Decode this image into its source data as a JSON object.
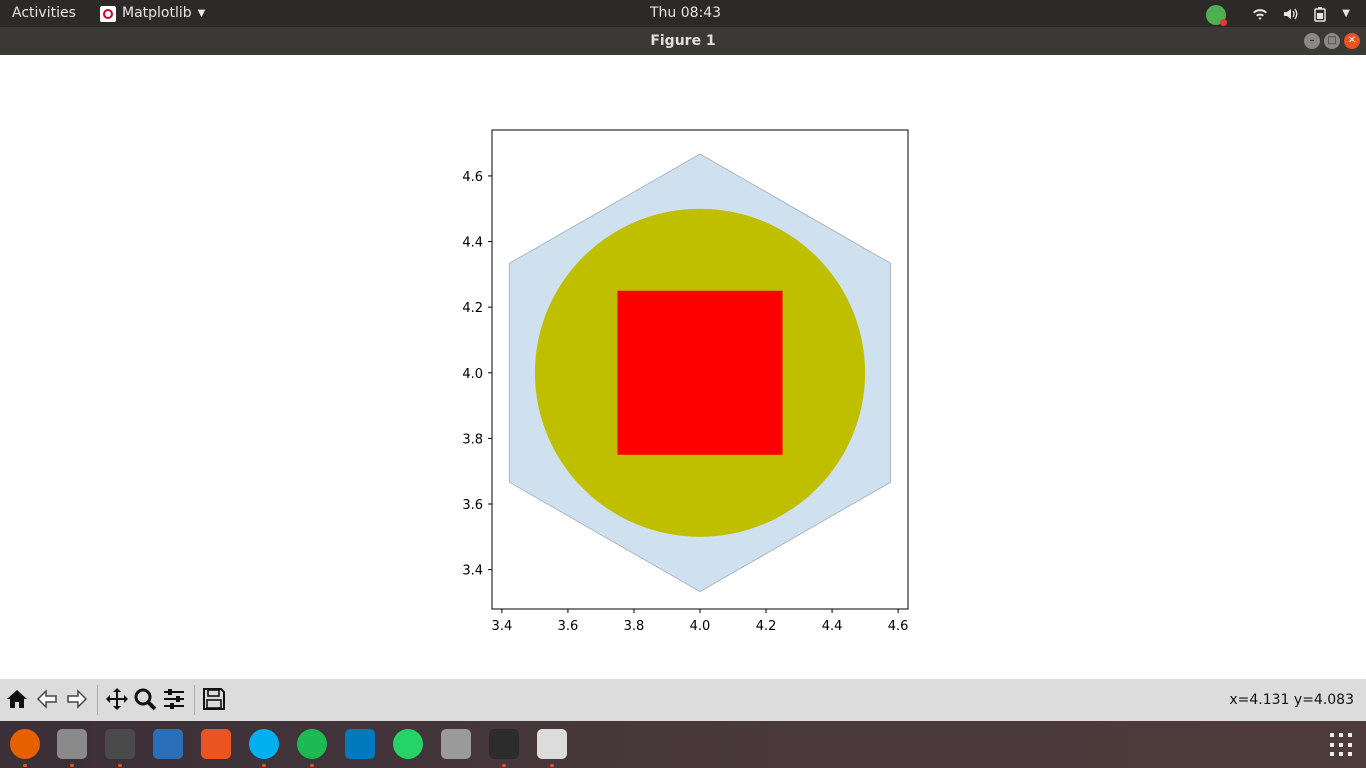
{
  "topbar": {
    "activities": "Activities",
    "app_name": "Matplotlib",
    "clock": "Thu 08:43"
  },
  "window": {
    "title": "Figure 1"
  },
  "toolbar": {
    "buttons": [
      "home-icon",
      "back-arrow-icon",
      "forward-arrow-icon",
      "pan-icon",
      "zoom-icon",
      "configure-subplots-icon",
      "save-icon"
    ],
    "coords": "x=4.131 y=4.083"
  },
  "chart_data": {
    "type": "patches",
    "xlim": [
      3.37,
      4.63
    ],
    "ylim": [
      3.28,
      4.74
    ],
    "xticks": [
      3.4,
      3.6,
      3.8,
      4.0,
      4.2,
      4.4,
      4.6
    ],
    "xtick_labels": [
      "3.4",
      "3.6",
      "3.8",
      "4.0",
      "4.2",
      "4.4",
      "4.6"
    ],
    "yticks": [
      3.4,
      3.6,
      3.8,
      4.0,
      4.2,
      4.4,
      4.6
    ],
    "ytick_labels": [
      "3.4",
      "3.6",
      "3.8",
      "4.0",
      "4.2",
      "4.4",
      "4.6"
    ],
    "patches": [
      {
        "shape": "hexagon",
        "center": [
          4.0,
          4.0
        ],
        "radius": 0.6667,
        "fill": "#cfe1ee",
        "stroke": "#a9b8c4"
      },
      {
        "shape": "circle",
        "center": [
          4.0,
          4.0
        ],
        "radius": 0.5,
        "fill": "#bfbf00"
      },
      {
        "shape": "rectangle",
        "xy": [
          3.75,
          3.75
        ],
        "width": 0.5,
        "height": 0.5,
        "fill": "#ff0000"
      }
    ]
  },
  "dock": {
    "apps": [
      "firefox-icon",
      "file-manager-icon",
      "sublime-text-icon",
      "text-editor-icon",
      "software-center-icon",
      "skype-icon",
      "spotify-icon",
      "trello-icon",
      "whatsapp-icon",
      "scanner-icon",
      "terminal-icon",
      "matplotlib-figure-icon"
    ],
    "colors": [
      "#e66000",
      "#8a8a8a",
      "#4a4a4a",
      "#2a6fb8",
      "#e95420",
      "#00aff0",
      "#1db954",
      "#0079bf",
      "#25d366",
      "#9a9a9a",
      "#2c2c2c",
      "#dcdcdc"
    ]
  }
}
